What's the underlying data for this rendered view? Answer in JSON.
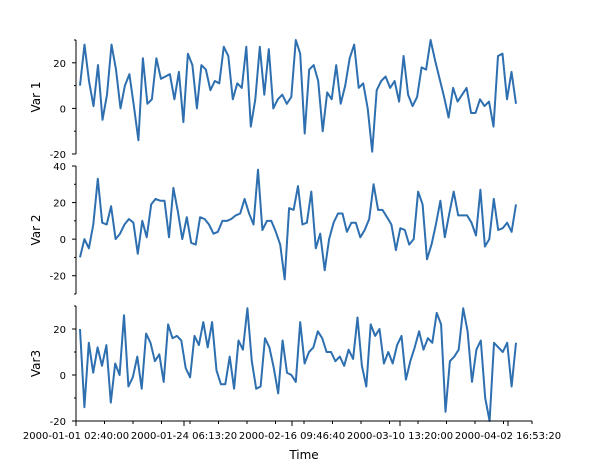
{
  "chart_data": {
    "type": "line",
    "xlabel": "Time",
    "x_tick_labels": [
      "2000-01-01 02:40:00",
      "2000-01-24 06:13:20",
      "2000-02-16 09:46:40",
      "2000-03-10 13:20:00",
      "2000-04-02 16:53:20"
    ],
    "x_start": "2000-01-01 02:40:00",
    "x_step_hours": 24,
    "colors": {
      "line": "#2e6fb0"
    },
    "panels": [
      {
        "ylabel": "Var 1",
        "ylim": [
          -20,
          30
        ],
        "yticks": [
          -20,
          0,
          20
        ],
        "values": [
          10,
          28,
          12,
          1,
          19,
          -5,
          6,
          28,
          17,
          0,
          10,
          15,
          1,
          -14,
          22,
          2,
          4,
          22,
          13,
          14,
          15,
          4,
          16,
          -6,
          24,
          19,
          0,
          19,
          17,
          8,
          12,
          11,
          27,
          23,
          4,
          11,
          9,
          27,
          -8,
          4,
          27,
          6,
          26,
          0,
          4,
          6,
          2,
          5,
          30,
          24,
          -11,
          17,
          19,
          12,
          -10,
          7,
          4,
          19,
          2,
          10,
          22,
          28,
          9,
          11,
          0,
          -19,
          8,
          12,
          14,
          9,
          12,
          3,
          23,
          6,
          1,
          5,
          18,
          17,
          30,
          21,
          13,
          5,
          -4,
          9,
          3,
          6,
          9,
          -2,
          -2,
          4,
          1,
          3,
          -8,
          23,
          24,
          4,
          16,
          2
        ]
      },
      {
        "ylabel": "Var 2",
        "ylim": [
          -30,
          40
        ],
        "yticks": [
          -20,
          0,
          20,
          40
        ],
        "values": [
          -10,
          0,
          -5,
          8,
          33,
          9,
          8,
          18,
          0,
          3,
          8,
          11,
          9,
          -8,
          10,
          1,
          19,
          22,
          21,
          21,
          1,
          28,
          15,
          0,
          12,
          -2,
          -3,
          12,
          11,
          8,
          3,
          4,
          10,
          10,
          11,
          13,
          14,
          22,
          14,
          8,
          38,
          5,
          10,
          10,
          4,
          -3,
          -22,
          17,
          16,
          29,
          8,
          9,
          26,
          -5,
          3,
          -17,
          0,
          9,
          14,
          14,
          4,
          9,
          9,
          1,
          5,
          11,
          30,
          16,
          16,
          12,
          8,
          -6,
          6,
          5,
          -3,
          0,
          26,
          19,
          -11,
          -3,
          8,
          21,
          1,
          14,
          26,
          13,
          13,
          13,
          9,
          2,
          27,
          -4,
          0,
          22,
          5,
          6,
          9,
          4,
          19
        ]
      },
      {
        "ylabel": "Var3",
        "ylim": [
          -20,
          30
        ],
        "yticks": [
          -20,
          0,
          20
        ],
        "values": [
          20,
          -14,
          14,
          1,
          12,
          4,
          13,
          -12,
          5,
          0,
          26,
          -5,
          -1,
          8,
          -6,
          18,
          14,
          6,
          9,
          -3,
          22,
          16,
          17,
          15,
          3,
          -1,
          17,
          13,
          23,
          12,
          23,
          2,
          -4,
          -4,
          8,
          -6,
          15,
          11,
          29,
          6,
          -6,
          -5,
          16,
          12,
          3,
          -8,
          15,
          1,
          0,
          -3,
          23,
          5,
          10,
          12,
          19,
          16,
          10,
          10,
          6,
          8,
          4,
          11,
          7,
          25,
          4,
          -5,
          22,
          17,
          20,
          5,
          10,
          5,
          13,
          17,
          -2,
          6,
          12,
          19,
          11,
          16,
          14,
          27,
          22,
          -16,
          6,
          8,
          11,
          29,
          19,
          -3,
          11,
          15,
          -10,
          -20,
          14,
          12,
          10,
          14,
          -5,
          14
        ]
      }
    ]
  }
}
